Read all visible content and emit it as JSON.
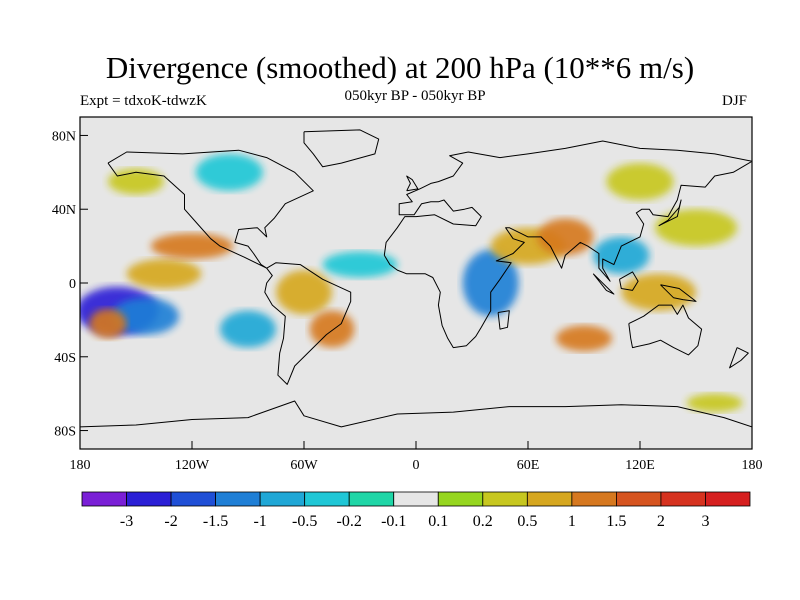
{
  "title": "Divergence (smoothed) at 200 hPa (10**6 m/s)",
  "subtitle": "050kyr BP - 050kyr BP",
  "left_label": "Expt = tdxoK-tdwzK",
  "right_label": "DJF",
  "map": {
    "lat_ticks": [
      {
        "value": 80,
        "label": "80N"
      },
      {
        "value": 40,
        "label": "40N"
      },
      {
        "value": 0,
        "label": "0"
      },
      {
        "value": -40,
        "label": "40S"
      },
      {
        "value": -80,
        "label": "80S"
      }
    ],
    "lon_ticks": [
      {
        "value": -180,
        "label": "180"
      },
      {
        "value": -120,
        "label": "120W"
      },
      {
        "value": -60,
        "label": "60W"
      },
      {
        "value": 0,
        "label": "0"
      },
      {
        "value": 60,
        "label": "60E"
      },
      {
        "value": 120,
        "label": "120E"
      },
      {
        "value": 180,
        "label": "180"
      }
    ],
    "colors": {
      "missing_band": "#e6e6e6",
      "coastline": "#000000",
      "frame": "#000000"
    },
    "blobs": [
      {
        "lon": -160,
        "lat": -15,
        "rx": 22,
        "ry": 13,
        "level": -3
      },
      {
        "lon": -145,
        "lat": -18,
        "rx": 18,
        "ry": 10,
        "level": -1.5
      },
      {
        "lon": -165,
        "lat": -22,
        "rx": 10,
        "ry": 8,
        "level": 1
      },
      {
        "lon": -135,
        "lat": 5,
        "rx": 20,
        "ry": 8,
        "level": 0.5
      },
      {
        "lon": -120,
        "lat": 20,
        "rx": 22,
        "ry": 7,
        "level": 1
      },
      {
        "lon": -90,
        "lat": -25,
        "rx": 15,
        "ry": 10,
        "level": -1
      },
      {
        "lon": -60,
        "lat": -5,
        "rx": 15,
        "ry": 12,
        "level": 0.5
      },
      {
        "lon": -45,
        "lat": -25,
        "rx": 12,
        "ry": 10,
        "level": 1
      },
      {
        "lon": -30,
        "lat": 10,
        "rx": 20,
        "ry": 7,
        "level": -0.5
      },
      {
        "lon": 40,
        "lat": 0,
        "rx": 15,
        "ry": 18,
        "level": -1.5
      },
      {
        "lon": 60,
        "lat": 20,
        "rx": 20,
        "ry": 10,
        "level": 0.5
      },
      {
        "lon": 80,
        "lat": 25,
        "rx": 15,
        "ry": 10,
        "level": 1
      },
      {
        "lon": 110,
        "lat": 15,
        "rx": 15,
        "ry": 10,
        "level": -1
      },
      {
        "lon": 130,
        "lat": -5,
        "rx": 20,
        "ry": 10,
        "level": 0.5
      },
      {
        "lon": 150,
        "lat": 30,
        "rx": 22,
        "ry": 10,
        "level": 0.2
      },
      {
        "lon": 90,
        "lat": -30,
        "rx": 15,
        "ry": 7,
        "level": 1
      },
      {
        "lon": -150,
        "lat": 55,
        "rx": 15,
        "ry": 7,
        "level": 0.2
      },
      {
        "lon": -100,
        "lat": 60,
        "rx": 18,
        "ry": 10,
        "level": -0.5
      },
      {
        "lon": 120,
        "lat": 55,
        "rx": 18,
        "ry": 10,
        "level": 0.2
      },
      {
        "lon": 160,
        "lat": -65,
        "rx": 15,
        "ry": 5,
        "level": 0.2
      }
    ]
  },
  "colorbar": {
    "colors": [
      "#7a1fd6",
      "#2b1fd6",
      "#1f4fd6",
      "#1f7fd6",
      "#1fa7d6",
      "#1fc7d6",
      "#1fd6a7",
      "#e6e6e6",
      "#96d61f",
      "#c7c71f",
      "#d6a71f",
      "#d6781f",
      "#d6541f",
      "#d6321f",
      "#d61f1f"
    ],
    "labels": [
      "-3",
      "-2",
      "-1.5",
      "-1",
      "-0.5",
      "-0.2",
      "-0.1",
      "0.1",
      "0.2",
      "0.5",
      "1",
      "1.5",
      "2",
      "3"
    ]
  }
}
